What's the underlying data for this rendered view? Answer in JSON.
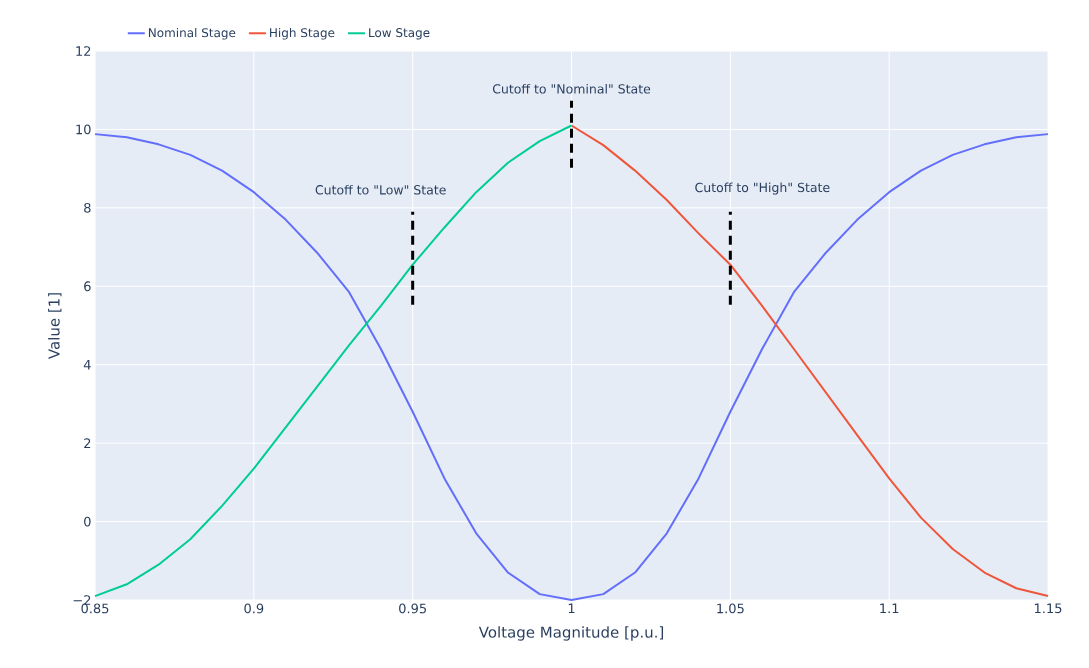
{
  "chart_data": {
    "type": "line",
    "xlabel": "Voltage Magnitude [p.u.]",
    "ylabel": "Value [1]",
    "xlim": [
      0.85,
      1.15
    ],
    "ylim": [
      -2,
      12
    ],
    "xticks": [
      0.85,
      0.9,
      0.95,
      1,
      1.05,
      1.1,
      1.15
    ],
    "yticks": [
      {
        "value": -2,
        "label": "−2"
      },
      0,
      2,
      4,
      6,
      8,
      10,
      12
    ],
    "grid": true,
    "legend": "top left",
    "line_style": "solid",
    "series": [
      {
        "name": "Nominal Stage",
        "color": "#636efa",
        "x": [
          0.85,
          0.86,
          0.87,
          0.88,
          0.89,
          0.9,
          0.91,
          0.92,
          0.93,
          0.94,
          0.95,
          0.96,
          0.97,
          0.98,
          0.99,
          1.0,
          1.01,
          1.02,
          1.03,
          1.04,
          1.05,
          1.06,
          1.07,
          1.08,
          1.09,
          1.1,
          1.11,
          1.12,
          1.13,
          1.14,
          1.15
        ],
        "values": [
          9.88,
          9.8,
          9.62,
          9.35,
          8.95,
          8.4,
          7.7,
          6.85,
          5.85,
          4.4,
          2.8,
          1.1,
          -0.3,
          -1.3,
          -1.85,
          -2.0,
          -1.85,
          -1.3,
          -0.3,
          1.1,
          2.8,
          4.4,
          5.85,
          6.85,
          7.7,
          8.4,
          8.95,
          9.35,
          9.62,
          9.8,
          9.88
        ]
      },
      {
        "name": "High Stage",
        "color": "#ef553b",
        "x": [
          1.0,
          1.01,
          1.02,
          1.03,
          1.04,
          1.05,
          1.06,
          1.07,
          1.08,
          1.09,
          1.1,
          1.11,
          1.12,
          1.13,
          1.14,
          1.15
        ],
        "values": [
          10.1,
          9.6,
          8.95,
          8.2,
          7.35,
          6.55,
          5.5,
          4.4,
          3.3,
          2.2,
          1.1,
          0.1,
          -0.7,
          -1.3,
          -1.7,
          -1.9
        ]
      },
      {
        "name": "Low Stage",
        "color": "#00cc96",
        "x": [
          0.85,
          0.86,
          0.87,
          0.88,
          0.89,
          0.9,
          0.91,
          0.92,
          0.93,
          0.94,
          0.95,
          0.96,
          0.97,
          0.98,
          0.99,
          1.0
        ],
        "values": [
          -1.9,
          -1.6,
          -1.1,
          -0.45,
          0.4,
          1.35,
          2.4,
          3.45,
          4.5,
          5.5,
          6.55,
          7.5,
          8.4,
          9.15,
          9.7,
          10.1
        ]
      },
      {
        "type": "line",
        "line_style": "dashed",
        "color": "#000000",
        "x": [
          0.95,
          0.95
        ],
        "values": [
          5.53,
          7.9
        ]
      },
      {
        "type": "line",
        "line_style": "dashed",
        "color": "#000000",
        "x": [
          1.0,
          1.0
        ],
        "values": [
          9.02,
          10.73
        ]
      },
      {
        "type": "line",
        "line_style": "dashed",
        "color": "#000000",
        "x": [
          1.05,
          1.05
        ],
        "values": [
          5.53,
          7.9
        ]
      }
    ],
    "annotations": [
      "Cutoff to \"Low\" State",
      "Cutoff to \"Nominal\" State",
      "Cutoff to \"High\" State"
    ]
  }
}
